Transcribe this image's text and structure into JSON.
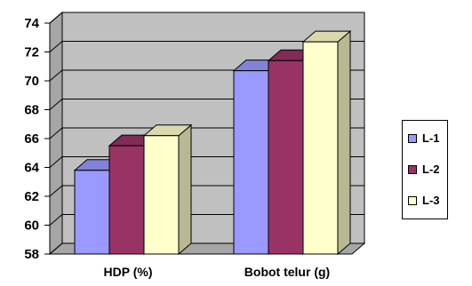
{
  "chart_data": {
    "type": "bar",
    "categories": [
      "HDP (%)",
      "Bobot telur (g)"
    ],
    "series": [
      {
        "name": "L-1",
        "values": [
          63.8,
          70.7
        ],
        "color": "#9999ff"
      },
      {
        "name": "L-2",
        "values": [
          65.5,
          71.4
        ],
        "color": "#993366"
      },
      {
        "name": "L-3",
        "values": [
          66.2,
          72.7
        ],
        "color": "#ffffcc"
      }
    ],
    "ylim": [
      58,
      74
    ],
    "yticks": [
      "58",
      "60",
      "62",
      "64",
      "66",
      "68",
      "70",
      "72",
      "74"
    ],
    "title": "",
    "xlabel": "",
    "ylabel": "",
    "grid": true,
    "plot_background": "#c0c0c0",
    "legend_position": "right",
    "style": "3d-clustered-column"
  },
  "legend": {
    "items": [
      {
        "label": "L-1",
        "color": "#9999ff"
      },
      {
        "label": "L-2",
        "color": "#993366"
      },
      {
        "label": "L-3",
        "color": "#ffffcc"
      }
    ]
  }
}
